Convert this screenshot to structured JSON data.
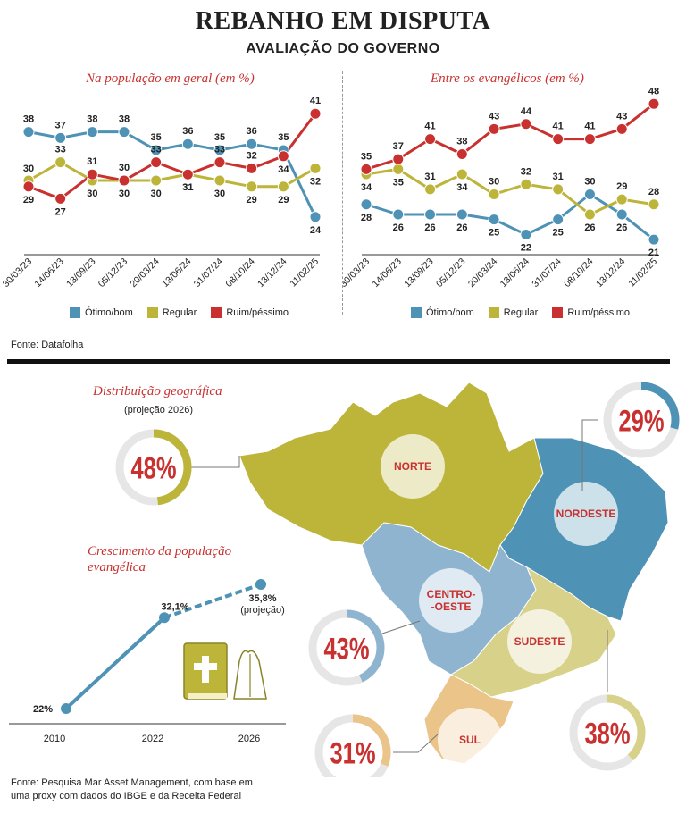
{
  "header": {
    "title": "REBANHO EM DISPUTA",
    "subtitle": "AVALIAÇÃO DO GOVERNO"
  },
  "colors": {
    "otimo": "#4e92b5",
    "regular": "#bdb43a",
    "ruim": "#c8312f",
    "accent": "#c8312f"
  },
  "legend": {
    "otimo": "Ótimo/bom",
    "regular": "Regular",
    "ruim": "Ruim/péssimo"
  },
  "source_top": "Fonte: Datafolha",
  "source_bottom_1": "Fonte: Pesquisa Mar Asset Management, com base em",
  "source_bottom_2": "uma proxy com dados do IBGE e da Receita Federal",
  "chart_data": [
    {
      "type": "line",
      "title": "Na população em geral (em %)",
      "categories": [
        "30/03/23",
        "14/06/23",
        "13/09/23",
        "05/12/23",
        "20/03/24",
        "13/06/24",
        "31/07/24",
        "08/10/24",
        "13/12/24",
        "11/02/25"
      ],
      "ylim": [
        20,
        45
      ],
      "series": [
        {
          "name": "Ótimo/bom",
          "values": [
            38,
            37,
            38,
            38,
            35,
            36,
            35,
            36,
            35,
            24
          ]
        },
        {
          "name": "Regular",
          "values": [
            30,
            33,
            30,
            30,
            30,
            31,
            30,
            29,
            29,
            32
          ]
        },
        {
          "name": "Ruim/péssimo",
          "values": [
            29,
            27,
            31,
            30,
            33,
            31,
            33,
            32,
            34,
            41
          ]
        }
      ]
    },
    {
      "type": "line",
      "title": "Entre os evangélicos (em %)",
      "categories": [
        "30/03/23",
        "14/06/23",
        "13/09/23",
        "05/12/23",
        "20/03/24",
        "13/06/24",
        "31/07/24",
        "08/10/24",
        "13/12/24",
        "11/02/25"
      ],
      "ylim": [
        18,
        50
      ],
      "series": [
        {
          "name": "Ótimo/bom",
          "values": [
            28,
            26,
            26,
            26,
            25,
            22,
            25,
            30,
            26,
            21
          ]
        },
        {
          "name": "Regular",
          "values": [
            34,
            35,
            31,
            34,
            30,
            32,
            31,
            26,
            29,
            28
          ]
        },
        {
          "name": "Ruim/péssimo",
          "values": [
            35,
            37,
            41,
            38,
            43,
            44,
            41,
            41,
            43,
            48
          ]
        }
      ]
    },
    {
      "type": "line",
      "title": "Crescimento da população evangélica",
      "categories": [
        "2010",
        "2022",
        "2026"
      ],
      "values": [
        22,
        32.1,
        35.8
      ],
      "value_labels": [
        "22%",
        "32,1%",
        "35,8%"
      ],
      "projection_label": "(projeção)"
    },
    {
      "type": "pie",
      "title": "Distribuição geográfica",
      "subtitle": "(projeção 2026)",
      "regions": [
        {
          "name": "NORTE",
          "value": 48,
          "label": "48%",
          "color": "#bdb43a"
        },
        {
          "name": "NORDESTE",
          "value": 29,
          "label": "29%",
          "color": "#4e92b5"
        },
        {
          "name": "CENTRO-\n-OESTE",
          "value": 43,
          "label": "43%",
          "color": "#8fb4cf"
        },
        {
          "name": "SUDESTE",
          "value": 38,
          "label": "38%",
          "color": "#d8d18a"
        },
        {
          "name": "SUL",
          "value": 31,
          "label": "31%",
          "color": "#ebc48a"
        }
      ]
    }
  ]
}
